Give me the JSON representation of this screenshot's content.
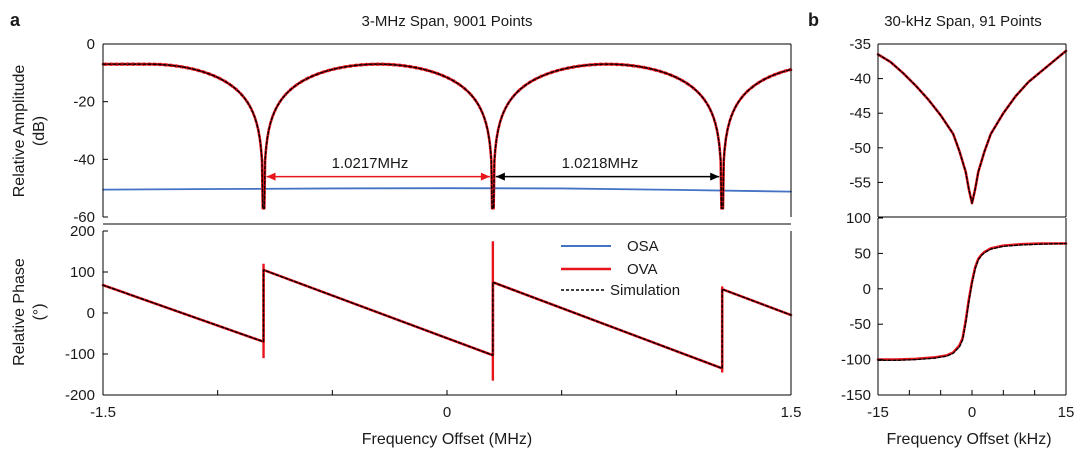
{
  "colors": {
    "osa": "#4472C4",
    "ova": "#E8141B",
    "simulation": "#000000",
    "arrow_left": "#E8141B",
    "arrow_right": "#000000",
    "axis": "#000000"
  },
  "panels": {
    "a": {
      "letter": "a",
      "title": "3-MHz Span, 9001 Points",
      "amplitude_ylabel": "Relative Amplitude",
      "amplitude_yunit": "(dB)",
      "phase_ylabel": "Relative Phase",
      "phase_yunit": "(°)",
      "xlabel": "Frequency Offset (MHz)"
    },
    "b": {
      "letter": "b",
      "title": "30-kHz Span, 91 Points",
      "xlabel": "Frequency Offset (kHz)"
    }
  },
  "annotations": {
    "spacing_left": "1.0217MHz",
    "spacing_right": "1.0218MHz"
  },
  "legend": {
    "osa": "OSA",
    "ova": "OVA",
    "simulation": "Simulation",
    "position": "upper-right of phase panel a"
  },
  "chart_data": [
    {
      "id": "a-amplitude",
      "type": "line",
      "title": "3-MHz Span, 9001 Points",
      "ylabel": "Relative Amplitude (dB)",
      "xlim": [
        -1.5,
        1.5
      ],
      "ylim": [
        -60,
        0
      ],
      "y_ticks": [
        0,
        -20,
        -40,
        -60
      ],
      "notch_centers_mhz": [
        -0.8,
        0.2,
        1.2
      ],
      "lobe_peak_db": -7,
      "notch_floor_db": -57,
      "series": [
        {
          "name": "OVA",
          "x": [
            -1.5,
            -1.3,
            -1.1,
            -0.95,
            -0.85,
            -0.8,
            -0.75,
            -0.6,
            -0.45,
            -0.3,
            -0.15,
            0.0,
            0.15,
            0.2,
            0.25,
            0.4,
            0.55,
            0.7,
            0.85,
            1.0,
            1.15,
            1.2,
            1.25,
            1.4,
            1.5
          ],
          "y": [
            -7.2,
            -7.5,
            -10,
            -15,
            -27,
            -57,
            -27,
            -12,
            -8,
            -7,
            -8,
            -12,
            -27,
            -57,
            -27,
            -12,
            -8,
            -7,
            -8,
            -12,
            -27,
            -57,
            -27,
            -12,
            -9
          ]
        },
        {
          "name": "Simulation",
          "x": [
            -1.5,
            -1.3,
            -1.1,
            -0.95,
            -0.85,
            -0.8,
            -0.75,
            -0.6,
            -0.45,
            -0.3,
            -0.15,
            0.0,
            0.15,
            0.2,
            0.25,
            0.4,
            0.55,
            0.7,
            0.85,
            1.0,
            1.15,
            1.2,
            1.25,
            1.4,
            1.5
          ],
          "y": [
            -7.2,
            -7.5,
            -10,
            -15,
            -27,
            -57,
            -27,
            -12,
            -8,
            -7,
            -8,
            -12,
            -27,
            -57,
            -27,
            -12,
            -8,
            -7,
            -8,
            -12,
            -27,
            -57,
            -27,
            -12,
            -9
          ]
        },
        {
          "name": "OSA",
          "x": [
            -1.5,
            -1.0,
            -0.5,
            0.0,
            0.5,
            1.0,
            1.5
          ],
          "y": [
            -50.5,
            -50.3,
            -50.1,
            -50.0,
            -50.1,
            -50.6,
            -51.2
          ]
        }
      ]
    },
    {
      "id": "a-phase",
      "type": "line",
      "ylabel": "Relative Phase (°)",
      "xlabel": "Frequency Offset (MHz)",
      "xlim": [
        -1.5,
        1.5
      ],
      "ylim": [
        -200,
        200
      ],
      "x_ticks": [
        -1.5,
        0,
        1.5
      ],
      "x_tick_labels": [
        "-1.5",
        "0",
        "1.5"
      ],
      "y_ticks": [
        200,
        100,
        0,
        -100,
        -200
      ],
      "series": [
        {
          "name": "OVA",
          "x": [
            -1.5,
            -0.8,
            -0.8,
            0.2,
            0.2,
            1.2,
            1.2,
            1.5
          ],
          "y": [
            68,
            -70,
            105,
            -103,
            75,
            -135,
            58,
            -5
          ]
        },
        {
          "name": "Simulation",
          "x": [
            -1.5,
            -0.8,
            -0.8,
            0.2,
            0.2,
            1.2,
            1.2,
            1.5
          ],
          "y": [
            68,
            -70,
            105,
            -103,
            75,
            -135,
            58,
            -5
          ]
        }
      ]
    },
    {
      "id": "b-amplitude",
      "type": "line",
      "title": "30-kHz Span, 91 Points",
      "xlim": [
        -15,
        15
      ],
      "ylim": [
        -60,
        -35
      ],
      "y_ticks": [
        -35,
        -40,
        -45,
        -50,
        -55
      ],
      "series": [
        {
          "name": "OVA",
          "x": [
            -15,
            -13,
            -11,
            -9,
            -7,
            -5,
            -3,
            -2,
            -1,
            -0.5,
            0,
            0.5,
            1,
            2,
            3,
            5,
            7,
            9,
            11,
            13,
            15
          ],
          "y": [
            -36.5,
            -37.6,
            -39.2,
            -41.0,
            -43.0,
            -45.3,
            -48.0,
            -50.5,
            -53.5,
            -56.0,
            -58.0,
            -56.0,
            -53.5,
            -50.5,
            -48.0,
            -45.0,
            -42.5,
            -40.5,
            -39.0,
            -37.5,
            -36.0
          ]
        },
        {
          "name": "Simulation",
          "x": [
            -15,
            -13,
            -11,
            -9,
            -7,
            -5,
            -3,
            -2,
            -1,
            -0.5,
            0,
            0.5,
            1,
            2,
            3,
            5,
            7,
            9,
            11,
            13,
            15
          ],
          "y": [
            -36.5,
            -37.6,
            -39.2,
            -41.0,
            -43.0,
            -45.3,
            -48.0,
            -50.5,
            -53.5,
            -56.0,
            -58.0,
            -56.0,
            -53.5,
            -50.5,
            -48.0,
            -45.0,
            -42.5,
            -40.5,
            -39.0,
            -37.5,
            -36.0
          ]
        }
      ]
    },
    {
      "id": "b-phase",
      "type": "line",
      "xlabel": "Frequency Offset (kHz)",
      "xlim": [
        -15,
        15
      ],
      "ylim": [
        -150,
        100
      ],
      "x_ticks": [
        -15,
        0,
        15
      ],
      "x_tick_labels": [
        "-15",
        "0",
        "15"
      ],
      "y_ticks": [
        100,
        50,
        0,
        -50,
        -100,
        -150
      ],
      "series": [
        {
          "name": "OVA",
          "x": [
            -15,
            -12,
            -9,
            -6,
            -4,
            -3,
            -2,
            -1.5,
            -1,
            -0.5,
            0,
            0.5,
            1,
            1.5,
            2,
            3,
            5,
            8,
            11,
            15
          ],
          "y": [
            -100,
            -100,
            -99,
            -97,
            -94,
            -90,
            -80,
            -70,
            -45,
            -15,
            10,
            30,
            42,
            48,
            52,
            57,
            61,
            63,
            64,
            64
          ]
        },
        {
          "name": "Simulation",
          "x": [
            -15,
            -12,
            -9,
            -6,
            -4,
            -3,
            -2,
            -1.5,
            -1,
            -0.5,
            0,
            0.5,
            1,
            1.5,
            2,
            3,
            5,
            8,
            11,
            15
          ],
          "y": [
            -101,
            -101,
            -100,
            -98,
            -95,
            -91,
            -82,
            -72,
            -48,
            -18,
            8,
            28,
            41,
            47,
            51,
            56,
            60,
            62,
            63,
            64
          ]
        }
      ]
    }
  ]
}
